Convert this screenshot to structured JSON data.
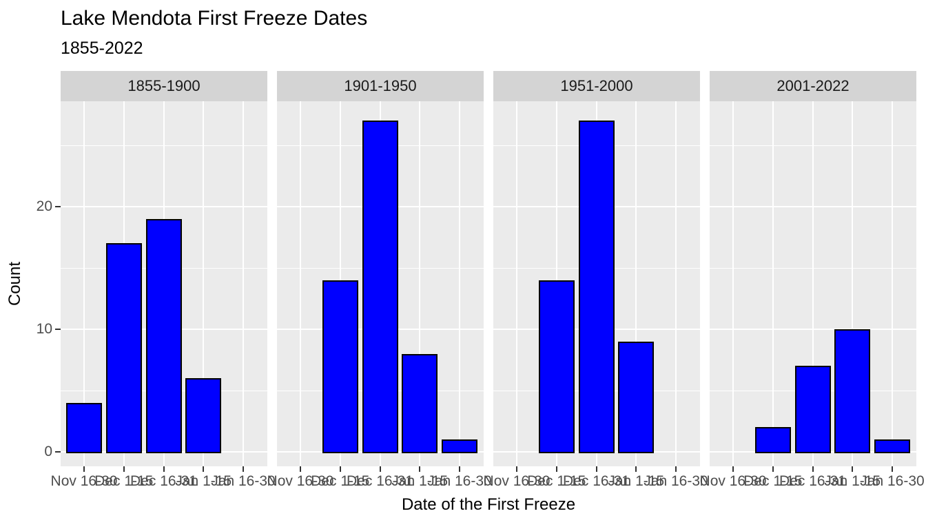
{
  "title": "Lake Mendota First Freeze Dates",
  "subtitle": "1855-2022",
  "chart_data": {
    "type": "bar",
    "title": "Lake Mendota First Freeze Dates",
    "subtitle": "1855-2022",
    "xlabel": "Date of the First Freeze",
    "ylabel": "Count",
    "categories": [
      "Nov 16-30",
      "Dec 1-15",
      "Dec 16-31",
      "Jan 1-15",
      "Jan 16-30"
    ],
    "facets": [
      {
        "label": "1855-1900",
        "values": [
          4,
          17,
          19,
          6,
          0
        ]
      },
      {
        "label": "1901-1950",
        "values": [
          0,
          14,
          27,
          8,
          1
        ]
      },
      {
        "label": "1951-2000",
        "values": [
          0,
          14,
          27,
          9,
          0
        ]
      },
      {
        "label": "2001-2022",
        "values": [
          0,
          2,
          7,
          10,
          1
        ]
      }
    ],
    "y_major_ticks": [
      0,
      10,
      20
    ],
    "y_minor_ticks": [
      5,
      15,
      25
    ],
    "ylim": [
      0,
      27
    ],
    "grid": true,
    "legend": "none",
    "colors": {
      "bar_fill": "#0000FF",
      "bar_border": "#000000",
      "panel_bg": "#EBEBEB",
      "strip_bg": "#D4D4D4",
      "grid": "#FFFFFF",
      "tick_mark": "#333333",
      "tick_text": "#4d4d4d",
      "title_text": "#000000"
    }
  }
}
